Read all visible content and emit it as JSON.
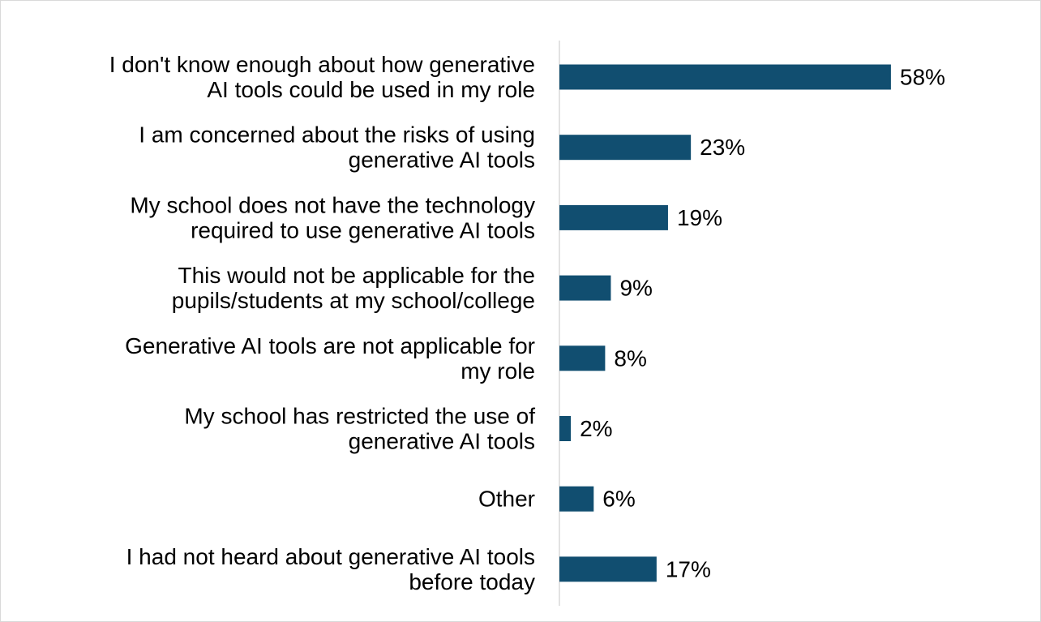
{
  "chart_data": {
    "type": "bar",
    "orientation": "horizontal",
    "categories": [
      [
        "I don't know enough about how generative",
        "AI tools could be used in my role"
      ],
      [
        "I am concerned about the risks of using",
        "generative AI tools"
      ],
      [
        "My school does not have the technology",
        "required to use generative AI tools"
      ],
      [
        "This would not be applicable for the",
        "pupils/students at my school/college"
      ],
      [
        "Generative AI tools are not applicable for",
        "my role"
      ],
      [
        "My school has restricted the use of",
        "generative AI tools"
      ],
      [
        "Other"
      ],
      [
        "I had not heard about generative AI tools",
        "before today"
      ]
    ],
    "values": [
      58,
      23,
      19,
      9,
      8,
      2,
      6,
      17
    ],
    "value_labels": [
      "58%",
      "23%",
      "19%",
      "9%",
      "8%",
      "2%",
      "6%",
      "17%"
    ],
    "bar_color": "#114e70",
    "axis_color": "#d9d9d9",
    "xlim": [
      0,
      100
    ],
    "grid": false,
    "legend": "none"
  }
}
